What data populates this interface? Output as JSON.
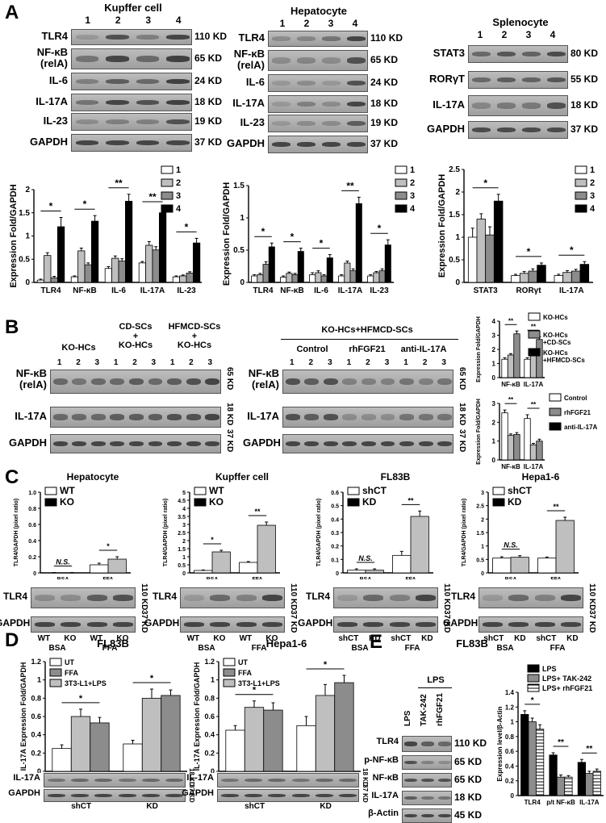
{
  "panelA": {
    "letter": "A",
    "kupffer": {
      "title": "Kupffer cell",
      "lanes": [
        "1",
        "2",
        "3",
        "4"
      ],
      "rows": [
        "TLR4",
        "NF-κB\n(relA)",
        "IL-6",
        "IL-17A",
        "IL-23",
        "GAPDH"
      ],
      "sizes": [
        "110 KD",
        "65 KD",
        "24 KD",
        "18 KD",
        "19 KD",
        "37 KD"
      ]
    },
    "hepatocyte": {
      "title": "Hepatocyte",
      "lanes": [
        "1",
        "2",
        "3",
        "4"
      ],
      "rows": [
        "TLR4",
        "NF-κB\n(relA)",
        "IL-6",
        "IL-17A",
        "IL-23",
        "GAPDH"
      ],
      "sizes": [
        "110 KD",
        "65 KD",
        "24 KD",
        "18 KD",
        "19 KD",
        "37 KD"
      ]
    },
    "splenocyte": {
      "title": "Splenocyte",
      "lanes": [
        "1",
        "2",
        "3",
        "4"
      ],
      "rows": [
        "STAT3",
        "RORγT",
        "IL-17A",
        "GAPDH"
      ],
      "sizes": [
        "80 KD",
        "55 KD",
        "18 KD",
        "37 KD"
      ]
    }
  },
  "panelB": {
    "letter": "B",
    "left": {
      "groups": [
        "KO-HCs",
        "CD-SCs\n+\nKO-HCs",
        "HFMCD-SCs\n+\nKO-HCs"
      ],
      "lanes": [
        "1",
        "2",
        "3",
        "1",
        "2",
        "3",
        "1",
        "2",
        "3"
      ],
      "rows": [
        "NF-κB\n(relA)",
        "IL-17A",
        "GAPDH"
      ],
      "sizes": [
        "65 KD",
        "18 KD",
        "37 KD"
      ]
    },
    "right": {
      "header": "KO-HCs+HFMCD-SCs",
      "groups": [
        "Control",
        "rhFGF21",
        "anti-IL-17A"
      ],
      "lanes": [
        "1",
        "2",
        "3",
        "1",
        "2",
        "3",
        "1",
        "2",
        "3"
      ],
      "rows": [
        "NF-κB\n(relA)",
        "IL-17A",
        "GAPDH"
      ],
      "sizes": [
        "65 KD",
        "18 KD",
        "37 KD"
      ]
    },
    "legend_top": [
      "KO-HCs",
      "KO-HCs\n+CD-SCs",
      "KO-HCs\n+HFMCD-SCs"
    ],
    "legend_bottom": [
      "Control",
      "rhFGF21",
      "anti-IL-17A"
    ]
  },
  "panelC": {
    "letter": "C",
    "panels": [
      {
        "title": "Hepatocyte",
        "legend": [
          "WT",
          "KO"
        ],
        "lanes": [
          "WT",
          "KO",
          "WT",
          "KO"
        ],
        "groups": [
          "BSA",
          "FFA"
        ],
        "ns": "N.S."
      },
      {
        "title": "Kupffer cell",
        "legend": [
          "WT",
          "KO"
        ],
        "lanes": [
          "WT",
          "KO",
          "WT",
          "KO"
        ],
        "groups": [
          "BSA",
          "FFA"
        ]
      },
      {
        "title": "FL83B",
        "legend": [
          "shCT",
          "KD"
        ],
        "lanes": [
          "shCT",
          "KD",
          "shCT",
          "KD"
        ],
        "groups": [
          "BSA",
          "FFA"
        ],
        "ns": "N.S."
      },
      {
        "title": "Hepa1-6",
        "legend": [
          "shCT",
          "KD"
        ],
        "lanes": [
          "shCT",
          "KD",
          "shCT",
          "KD"
        ],
        "groups": [
          "BSA",
          "FFA"
        ],
        "ns": "N.S."
      }
    ],
    "rows": [
      "TLR4",
      "GAPDH"
    ],
    "sizes": [
      "110 KD",
      "37 KD"
    ]
  },
  "panelD": {
    "letter": "D",
    "panels": [
      {
        "title": "FL83B",
        "legend": [
          "UT",
          "FFA",
          "3T3-L1+LPS"
        ],
        "groups": [
          "shCT",
          "KD"
        ]
      },
      {
        "title": "Hepa1-6",
        "legend": [
          "UT",
          "FFA",
          "3T3-L1+LPS"
        ],
        "groups": [
          "shCT",
          "KD"
        ]
      }
    ],
    "rows": [
      "IL-17A",
      "GAPDH"
    ],
    "sizes": [
      "18 KD",
      "37 KD"
    ]
  },
  "panelE": {
    "letter": "E",
    "title": "FL83B",
    "lps_header": "LPS",
    "lanes": [
      "LPS",
      "TAK-242",
      "rhFGF21"
    ],
    "rows": [
      "TLR4",
      "p-NF-κB",
      "NF-κB",
      "IL-17A",
      "β-Actin"
    ],
    "sizes": [
      "110 KD",
      "65 KD",
      "65 KD",
      "18 KD",
      "45 KD"
    ],
    "legend": [
      "LPS",
      "LPS+ TAK-242",
      "LPS+ rhFGF21"
    ]
  },
  "chart_data": [
    {
      "type": "bar",
      "id": "A-kupffer",
      "ylabel": "Expression Fold/GAPDH",
      "ylim": [
        0,
        2
      ],
      "yticks": [
        "0",
        "0.5",
        "1",
        "1.5",
        "2"
      ],
      "categories": [
        "TLR4",
        "NF-κB",
        "IL-6",
        "IL-17A",
        "IL-23"
      ],
      "series": [
        {
          "name": "1",
          "values": [
            0.05,
            0.12,
            0.3,
            0.42,
            0.12
          ]
        },
        {
          "name": "2",
          "values": [
            0.58,
            0.68,
            0.52,
            0.8,
            0.14
          ]
        },
        {
          "name": "3",
          "values": [
            0.1,
            0.38,
            0.46,
            0.7,
            0.2
          ]
        },
        {
          "name": "4",
          "values": [
            1.2,
            1.32,
            1.75,
            1.5,
            0.85
          ]
        }
      ],
      "errors": [
        [
          0.02,
          0.02,
          0.04,
          0.03,
          0.02
        ],
        [
          0.06,
          0.06,
          0.05,
          0.08,
          0.02
        ],
        [
          0.03,
          0.04,
          0.05,
          0.07,
          0.03
        ],
        [
          0.2,
          0.12,
          0.15,
          0.1,
          0.1
        ]
      ],
      "sig": [
        "*",
        "*",
        "**",
        "**",
        "*"
      ],
      "legend": [
        "1",
        "2",
        "3",
        "4"
      ]
    },
    {
      "type": "bar",
      "id": "A-hepatocyte",
      "ylabel": "Expression Fold/GAPDH",
      "ylim": [
        0,
        1.5
      ],
      "yticks": [
        "0",
        "0.5",
        "1",
        "1.5"
      ],
      "categories": [
        "TLR4",
        "NF-κB",
        "IL-6",
        "IL-17A",
        "IL-23"
      ],
      "series": [
        {
          "name": "1",
          "values": [
            0.1,
            0.08,
            0.12,
            0.1,
            0.1
          ]
        },
        {
          "name": "2",
          "values": [
            0.12,
            0.14,
            0.15,
            0.3,
            0.15
          ]
        },
        {
          "name": "3",
          "values": [
            0.28,
            0.12,
            0.1,
            0.18,
            0.18
          ]
        },
        {
          "name": "4",
          "values": [
            0.55,
            0.48,
            0.38,
            1.22,
            0.58
          ]
        }
      ],
      "errors": [
        [
          0.02,
          0.02,
          0.03,
          0.02,
          0.02
        ],
        [
          0.02,
          0.02,
          0.03,
          0.03,
          0.02
        ],
        [
          0.04,
          0.02,
          0.02,
          0.03,
          0.03
        ],
        [
          0.06,
          0.05,
          0.05,
          0.1,
          0.08
        ]
      ],
      "sig": [
        "*",
        "*",
        "*",
        "**",
        "*"
      ],
      "legend": [
        "1",
        "2",
        "3",
        "4"
      ]
    },
    {
      "type": "bar",
      "id": "A-splenocyte",
      "ylabel": "Expression Fold/GAPDH",
      "ylim": [
        0,
        2.5
      ],
      "yticks": [
        "0",
        "0.5",
        "1",
        "1.5",
        "2",
        "2.5"
      ],
      "categories": [
        "STAT3",
        "RORγt",
        "IL-17A"
      ],
      "series": [
        {
          "name": "1",
          "values": [
            1.0,
            0.15,
            0.15
          ]
        },
        {
          "name": "2",
          "values": [
            1.4,
            0.2,
            0.22
          ]
        },
        {
          "name": "3",
          "values": [
            1.05,
            0.25,
            0.25
          ]
        },
        {
          "name": "4",
          "values": [
            1.8,
            0.38,
            0.4
          ]
        }
      ],
      "errors": [
        [
          0.2,
          0.03,
          0.03
        ],
        [
          0.12,
          0.04,
          0.04
        ],
        [
          0.18,
          0.05,
          0.04
        ],
        [
          0.15,
          0.05,
          0.06
        ]
      ],
      "sig": [
        "*",
        "*",
        "*"
      ],
      "legend": [
        "1",
        "2",
        "3",
        "4"
      ]
    },
    {
      "type": "bar",
      "id": "B-top",
      "ylabel": "Expression Fold/GAPDH",
      "ylim": [
        0,
        4
      ],
      "yticks": [
        "0",
        "1",
        "2",
        "3",
        "4"
      ],
      "categories": [
        "NF-κB",
        "IL-17A"
      ],
      "series": [
        {
          "name": "KO-HCs",
          "values": [
            1.3,
            1.3
          ]
        },
        {
          "name": "KO-HCs +CD-SCs",
          "values": [
            1.6,
            1.6
          ]
        },
        {
          "name": "KO-HCs +HFMCD-SCs",
          "values": [
            3.1,
            2.7
          ]
        }
      ],
      "errors": [
        [
          0.1,
          0.1
        ],
        [
          0.1,
          0.1
        ],
        [
          0.2,
          0.2
        ]
      ],
      "sig": [
        "**",
        "**"
      ]
    },
    {
      "type": "bar",
      "id": "B-bottom",
      "ylabel": "Expression Fold/GAPDH",
      "ylim": [
        0,
        3
      ],
      "yticks": [
        "0",
        "1",
        "2",
        "3"
      ],
      "categories": [
        "NF-κB",
        "IL-17A"
      ],
      "series": [
        {
          "name": "Control",
          "values": [
            2.5,
            2.2
          ]
        },
        {
          "name": "rhFGF21",
          "values": [
            1.3,
            0.8
          ]
        },
        {
          "name": "anti-IL-17A",
          "values": [
            1.35,
            1.0
          ]
        }
      ],
      "errors": [
        [
          0.15,
          0.2
        ],
        [
          0.08,
          0.08
        ],
        [
          0.1,
          0.1
        ]
      ],
      "sig": [
        "**",
        "**"
      ]
    },
    {
      "type": "bar",
      "id": "C-hepatocyte",
      "ylabel": "TLR4/GAPDH (pixel ratio)",
      "ylim": [
        0,
        1
      ],
      "yticks": [
        "0",
        "0.2",
        "0.4",
        "0.6",
        "0.8",
        "1.0"
      ],
      "categories": [
        "BSA",
        "FFA"
      ],
      "series": [
        {
          "name": "WT",
          "values": [
            0.0,
            0.1
          ]
        },
        {
          "name": "KO",
          "values": [
            0.0,
            0.17
          ]
        }
      ],
      "errors": [
        [
          0.005,
          0.02
        ],
        [
          0.005,
          0.03
        ]
      ],
      "sig": [
        "N.S.",
        "*"
      ]
    },
    {
      "type": "bar",
      "id": "C-kupffer",
      "ylabel": "TLR4/GAPDH (pixel ratio)",
      "ylim": [
        0,
        5
      ],
      "yticks": [
        "0",
        "0.5",
        "1",
        "1.5",
        "2",
        "2.5",
        "3",
        "3.5",
        "4",
        "4.5",
        "5"
      ],
      "categories": [
        "BSA",
        "FFA"
      ],
      "series": [
        {
          "name": "WT",
          "values": [
            0.15,
            0.65
          ]
        },
        {
          "name": "KO",
          "values": [
            1.3,
            2.95
          ]
        }
      ],
      "errors": [
        [
          0.03,
          0.05
        ],
        [
          0.1,
          0.2
        ]
      ],
      "sig": [
        "*",
        "**"
      ]
    },
    {
      "type": "bar",
      "id": "C-fl83b",
      "ylabel": "TLR4/GAPDH (pixel ratio)",
      "ylim": [
        0,
        0.6
      ],
      "yticks": [
        "0",
        "0.1",
        "0.2",
        "0.3",
        "0.4",
        "0.5",
        "0.6"
      ],
      "categories": [
        "BSA",
        "FFA"
      ],
      "series": [
        {
          "name": "shCT",
          "values": [
            0.02,
            0.13
          ]
        },
        {
          "name": "KD",
          "values": [
            0.02,
            0.42
          ]
        }
      ],
      "errors": [
        [
          0.01,
          0.03
        ],
        [
          0.01,
          0.04
        ]
      ],
      "sig": [
        "N.S.",
        "**"
      ]
    },
    {
      "type": "bar",
      "id": "C-hepa16",
      "ylabel": "TLR4/GAPDH (pixel ratio)",
      "ylim": [
        0,
        3
      ],
      "yticks": [
        "0",
        "0.5",
        "1",
        "1.5",
        "2",
        "2.5",
        "3"
      ],
      "categories": [
        "BSA",
        "FFA"
      ],
      "series": [
        {
          "name": "shCT",
          "values": [
            0.55,
            0.55
          ]
        },
        {
          "name": "KD",
          "values": [
            0.58,
            1.95
          ]
        }
      ],
      "errors": [
        [
          0.05,
          0.04
        ],
        [
          0.06,
          0.12
        ]
      ],
      "sig": [
        "N.S.",
        "**"
      ]
    },
    {
      "type": "bar",
      "id": "D-fl83b",
      "ylabel": "IL-17A Expression Fold/GAPDH",
      "ylim": [
        0,
        1.2
      ],
      "yticks": [
        "0",
        "0.2",
        "0.4",
        "0.6",
        "0.8",
        "1",
        "1.2"
      ],
      "categories": [
        "shCT",
        "KD"
      ],
      "series": [
        {
          "name": "UT",
          "values": [
            0.25,
            0.3
          ]
        },
        {
          "name": "FFA",
          "values": [
            0.6,
            0.8
          ]
        },
        {
          "name": "3T3-L1+LPS",
          "values": [
            0.53,
            0.83
          ]
        }
      ],
      "errors": [
        [
          0.04,
          0.04
        ],
        [
          0.08,
          0.1
        ],
        [
          0.06,
          0.06
        ]
      ],
      "sig": [
        "*",
        "*"
      ]
    },
    {
      "type": "bar",
      "id": "D-hepa16",
      "ylabel": "IL-17A Expression Fold/GAPDH",
      "ylim": [
        0,
        1.2
      ],
      "yticks": [
        "0",
        "0.2",
        "0.4",
        "0.6",
        "0.8",
        "1",
        "1.2"
      ],
      "categories": [
        "shCT",
        "KD"
      ],
      "series": [
        {
          "name": "UT",
          "values": [
            0.45,
            0.5
          ]
        },
        {
          "name": "FFA",
          "values": [
            0.7,
            0.83
          ]
        },
        {
          "name": "3T3-L1+LPS",
          "values": [
            0.67,
            0.97
          ]
        }
      ],
      "errors": [
        [
          0.05,
          0.1
        ],
        [
          0.07,
          0.12
        ],
        [
          0.08,
          0.08
        ]
      ],
      "sig": [
        "*",
        "*"
      ]
    },
    {
      "type": "bar",
      "id": "E",
      "ylabel": "Expression level/β-Actin",
      "ylim": [
        0,
        1.4
      ],
      "yticks": [
        "0",
        "0.2",
        "0.4",
        "0.6",
        "0.8",
        "1",
        "1.2",
        "1.4"
      ],
      "categories": [
        "TLR4",
        "p/t NF-κB",
        "IL-17A"
      ],
      "series": [
        {
          "name": "LPS",
          "values": [
            1.1,
            0.55,
            0.45
          ]
        },
        {
          "name": "LPS+ TAK-242",
          "values": [
            1.0,
            0.25,
            0.3
          ]
        },
        {
          "name": "LPS+ rhFGF21",
          "values": [
            0.9,
            0.25,
            0.33
          ]
        }
      ],
      "errors": [
        [
          0.05,
          0.03,
          0.04
        ],
        [
          0.05,
          0.03,
          0.03
        ],
        [
          0.06,
          0.02,
          0.03
        ]
      ],
      "sig": [
        "*",
        "**",
        "**"
      ]
    }
  ]
}
